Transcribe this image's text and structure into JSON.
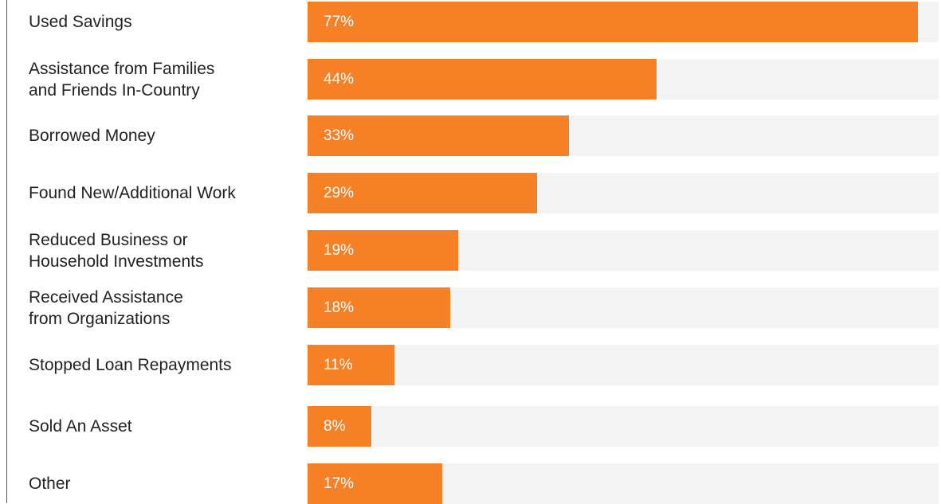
{
  "chart_data": {
    "type": "bar",
    "orientation": "horizontal",
    "categories": [
      "Used Savings",
      "Assistance from Families\nand Friends In-Country",
      "Borrowed Money",
      "Found New/Additional Work",
      "Reduced Business or\nHousehold Investments",
      "Received Assistance\nfrom Organizations",
      "Stopped Loan Repayments",
      "Sold An Asset",
      "Other"
    ],
    "values": [
      77,
      44,
      33,
      29,
      19,
      18,
      11,
      8,
      17
    ],
    "value_labels": [
      "77%",
      "44%",
      "33%",
      "29%",
      "19%",
      "18%",
      "11%",
      "8%",
      "17%"
    ],
    "xlim": [
      0,
      80
    ],
    "grid": false,
    "colors": {
      "bar": "#f58025",
      "track": "#f3f3f3",
      "value_text": "#ffffff"
    }
  }
}
